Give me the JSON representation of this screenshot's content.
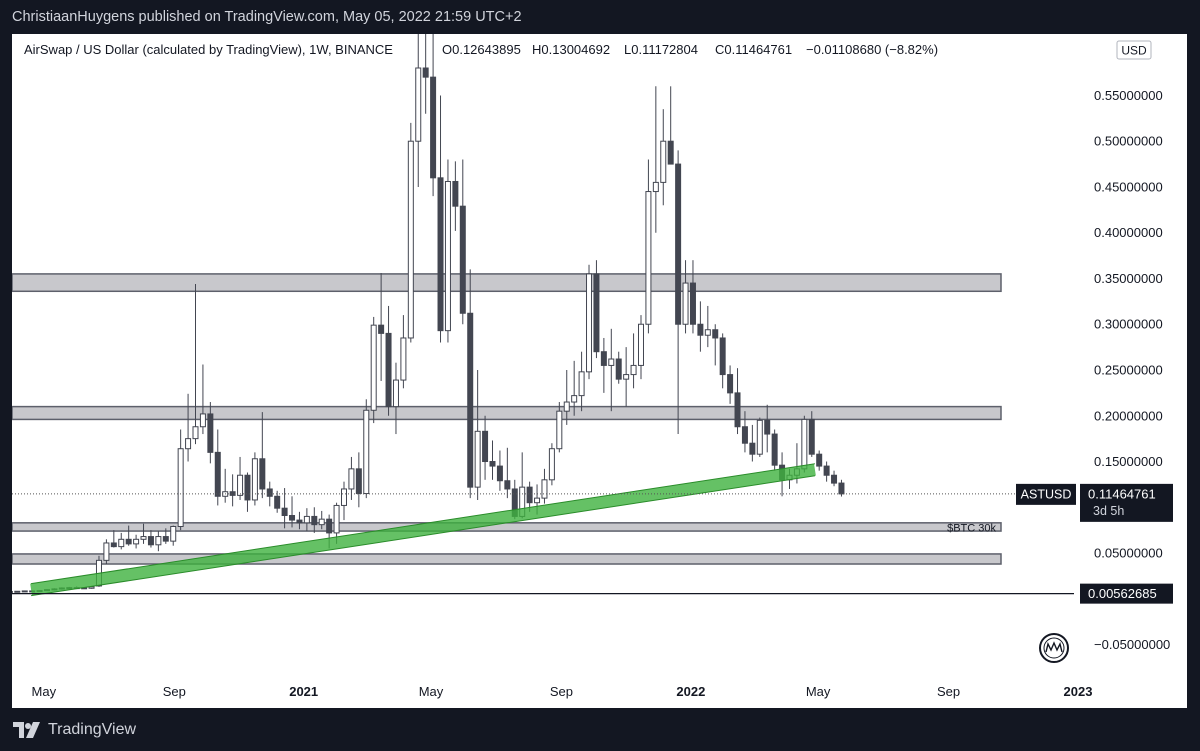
{
  "header": {
    "text": "ChristiaanHuygens published on TradingView.com, May 05, 2022 21:59 UTC+2"
  },
  "footer": {
    "brand": "TradingView"
  },
  "chart_data": {
    "type": "candlestick",
    "title": "AirSwap / US Dollar (calculated by TradingView), 1W, BINANCE",
    "ohlc_legend": {
      "open": "O0.12643895",
      "high": "H0.13004692",
      "low": "L0.11172804",
      "close": "C0.11464761",
      "change": "−0.01108680 (−8.82%)"
    },
    "currency": "USD",
    "symbol": "ASTUSD",
    "last_price": "0.11464761",
    "countdown": "3d 5h",
    "marked_price": "0.00562685",
    "ylim": [
      -0.08,
      0.58
    ],
    "x_ticks": [
      {
        "label": "May",
        "date": "2020-05-01"
      },
      {
        "label": "Sep",
        "date": "2020-09-01"
      },
      {
        "label": "2021",
        "date": "2021-01-01"
      },
      {
        "label": "May",
        "date": "2021-05-01"
      },
      {
        "label": "Sep",
        "date": "2021-09-01"
      },
      {
        "label": "2022",
        "date": "2022-01-01"
      },
      {
        "label": "May",
        "date": "2022-05-01"
      },
      {
        "label": "Sep",
        "date": "2022-09-01"
      },
      {
        "label": "2023",
        "date": "2023-01-01"
      }
    ],
    "y_ticks": [
      "0.55000000",
      "0.50000000",
      "0.45000000",
      "0.40000000",
      "0.35000000",
      "0.30000000",
      "0.25000000",
      "0.20000000",
      "0.15000000",
      "0.10000000",
      "0.05000000",
      "0.00000000",
      "−0.05000000"
    ],
    "zones": [
      {
        "low": 0.336,
        "high": 0.355,
        "label": ""
      },
      {
        "low": 0.196,
        "high": 0.21,
        "label": ""
      },
      {
        "low": 0.074,
        "high": 0.083,
        "label": "$BTC 30k"
      },
      {
        "low": 0.038,
        "high": 0.049,
        "label": ""
      }
    ],
    "trendline": {
      "start": [
        "2020-04-19",
        0.01
      ],
      "end": [
        "2022-04-28",
        0.141
      ]
    },
    "candles": [
      [
        "2020-03-30",
        0.008,
        0.0083,
        0.0077,
        0.008
      ],
      [
        "2020-04-06",
        0.008,
        0.0085,
        0.0076,
        0.0082
      ],
      [
        "2020-04-13",
        0.0082,
        0.009,
        0.0078,
        0.0086
      ],
      [
        "2020-04-20",
        0.0086,
        0.0092,
        0.008,
        0.0084
      ],
      [
        "2020-04-27",
        0.0084,
        0.0095,
        0.008,
        0.009
      ],
      [
        "2020-05-04",
        0.009,
        0.0105,
        0.0085,
        0.01
      ],
      [
        "2020-05-11",
        0.01,
        0.0115,
        0.0092,
        0.0108
      ],
      [
        "2020-05-18",
        0.0108,
        0.0125,
        0.01,
        0.0118
      ],
      [
        "2020-05-25",
        0.0118,
        0.013,
        0.0105,
        0.0122
      ],
      [
        "2020-06-01",
        0.0122,
        0.0135,
        0.011,
        0.012
      ],
      [
        "2020-06-08",
        0.012,
        0.0128,
        0.0108,
        0.0115
      ],
      [
        "2020-06-15",
        0.0115,
        0.014,
        0.011,
        0.013
      ],
      [
        "2020-06-22",
        0.014,
        0.047,
        0.013,
        0.042
      ],
      [
        "2020-06-29",
        0.042,
        0.065,
        0.038,
        0.061
      ],
      [
        "2020-07-06",
        0.061,
        0.075,
        0.056,
        0.057
      ],
      [
        "2020-07-13",
        0.057,
        0.072,
        0.054,
        0.065
      ],
      [
        "2020-07-20",
        0.065,
        0.08,
        0.058,
        0.06
      ],
      [
        "2020-07-27",
        0.06,
        0.07,
        0.055,
        0.065
      ],
      [
        "2020-08-03",
        0.065,
        0.082,
        0.06,
        0.068
      ],
      [
        "2020-08-10",
        0.068,
        0.075,
        0.056,
        0.059
      ],
      [
        "2020-08-17",
        0.059,
        0.074,
        0.052,
        0.068
      ],
      [
        "2020-08-24",
        0.068,
        0.077,
        0.06,
        0.063
      ],
      [
        "2020-08-31",
        0.063,
        0.08,
        0.058,
        0.079
      ],
      [
        "2020-09-07",
        0.079,
        0.185,
        0.075,
        0.164
      ],
      [
        "2020-09-14",
        0.164,
        0.224,
        0.15,
        0.175
      ],
      [
        "2020-09-21",
        0.175,
        0.344,
        0.169,
        0.188
      ],
      [
        "2020-09-28",
        0.188,
        0.256,
        0.18,
        0.202
      ],
      [
        "2020-10-05",
        0.202,
        0.215,
        0.148,
        0.16
      ],
      [
        "2020-10-12",
        0.16,
        0.185,
        0.102,
        0.112
      ],
      [
        "2020-10-19",
        0.112,
        0.142,
        0.105,
        0.117
      ],
      [
        "2020-10-26",
        0.117,
        0.136,
        0.101,
        0.113
      ],
      [
        "2020-11-02",
        0.113,
        0.155,
        0.108,
        0.135
      ],
      [
        "2020-11-09",
        0.135,
        0.138,
        0.095,
        0.108
      ],
      [
        "2020-11-16",
        0.108,
        0.16,
        0.102,
        0.153
      ],
      [
        "2020-11-23",
        0.153,
        0.204,
        0.11,
        0.12
      ],
      [
        "2020-11-30",
        0.12,
        0.128,
        0.101,
        0.112
      ],
      [
        "2020-12-07",
        0.112,
        0.118,
        0.094,
        0.099
      ],
      [
        "2020-12-14",
        0.099,
        0.121,
        0.077,
        0.091
      ],
      [
        "2020-12-21",
        0.091,
        0.112,
        0.078,
        0.086
      ],
      [
        "2020-12-28",
        0.086,
        0.095,
        0.076,
        0.083
      ],
      [
        "2021-01-04",
        0.083,
        0.099,
        0.074,
        0.09
      ],
      [
        "2021-01-11",
        0.09,
        0.1,
        0.072,
        0.081
      ],
      [
        "2021-01-18",
        0.081,
        0.096,
        0.076,
        0.087
      ],
      [
        "2021-01-25",
        0.087,
        0.092,
        0.055,
        0.072
      ],
      [
        "2021-02-01",
        0.072,
        0.105,
        0.06,
        0.102
      ],
      [
        "2021-02-08",
        0.102,
        0.128,
        0.086,
        0.12
      ],
      [
        "2021-02-15",
        0.12,
        0.155,
        0.108,
        0.142
      ],
      [
        "2021-02-22",
        0.142,
        0.16,
        0.1,
        0.115
      ],
      [
        "2021-03-01",
        0.115,
        0.218,
        0.11,
        0.206
      ],
      [
        "2021-03-08",
        0.206,
        0.308,
        0.192,
        0.299
      ],
      [
        "2021-03-15",
        0.299,
        0.356,
        0.238,
        0.29
      ],
      [
        "2021-03-22",
        0.29,
        0.32,
        0.2,
        0.21
      ],
      [
        "2021-03-29",
        0.21,
        0.258,
        0.18,
        0.239
      ],
      [
        "2021-04-05",
        0.239,
        0.31,
        0.23,
        0.285
      ],
      [
        "2021-04-12",
        0.285,
        0.52,
        0.28,
        0.5
      ],
      [
        "2021-04-19",
        0.5,
        0.62,
        0.45,
        0.58
      ],
      [
        "2021-04-26",
        0.58,
        0.65,
        0.53,
        0.57
      ],
      [
        "2021-05-03",
        0.57,
        0.63,
        0.44,
        0.46
      ],
      [
        "2021-05-10",
        0.46,
        0.55,
        0.28,
        0.293
      ],
      [
        "2021-05-17",
        0.293,
        0.48,
        0.28,
        0.456
      ],
      [
        "2021-05-24",
        0.456,
        0.478,
        0.402,
        0.429
      ],
      [
        "2021-05-31",
        0.429,
        0.48,
        0.3,
        0.312
      ],
      [
        "2021-06-07",
        0.312,
        0.36,
        0.11,
        0.122
      ],
      [
        "2021-06-14",
        0.122,
        0.25,
        0.108,
        0.183
      ],
      [
        "2021-06-21",
        0.183,
        0.2,
        0.13,
        0.15
      ],
      [
        "2021-06-28",
        0.15,
        0.173,
        0.13,
        0.145
      ],
      [
        "2021-07-05",
        0.145,
        0.162,
        0.118,
        0.129
      ],
      [
        "2021-07-12",
        0.129,
        0.165,
        0.11,
        0.12
      ],
      [
        "2021-07-19",
        0.12,
        0.13,
        0.087,
        0.09
      ],
      [
        "2021-07-26",
        0.09,
        0.16,
        0.088,
        0.122
      ],
      [
        "2021-08-02",
        0.122,
        0.128,
        0.095,
        0.105
      ],
      [
        "2021-08-09",
        0.105,
        0.125,
        0.092,
        0.11
      ],
      [
        "2021-08-16",
        0.11,
        0.142,
        0.104,
        0.13
      ],
      [
        "2021-08-23",
        0.13,
        0.17,
        0.124,
        0.164
      ],
      [
        "2021-08-30",
        0.164,
        0.215,
        0.16,
        0.205
      ],
      [
        "2021-09-06",
        0.205,
        0.25,
        0.19,
        0.215
      ],
      [
        "2021-09-13",
        0.215,
        0.26,
        0.2,
        0.222
      ],
      [
        "2021-09-20",
        0.222,
        0.27,
        0.205,
        0.248
      ],
      [
        "2021-09-27",
        0.248,
        0.365,
        0.24,
        0.355
      ],
      [
        "2021-10-04",
        0.355,
        0.37,
        0.263,
        0.27
      ],
      [
        "2021-10-11",
        0.27,
        0.285,
        0.225,
        0.255
      ],
      [
        "2021-10-18",
        0.255,
        0.295,
        0.205,
        0.262
      ],
      [
        "2021-10-25",
        0.262,
        0.27,
        0.235,
        0.24
      ],
      [
        "2021-11-01",
        0.24,
        0.275,
        0.21,
        0.245
      ],
      [
        "2021-11-08",
        0.245,
        0.29,
        0.23,
        0.255
      ],
      [
        "2021-11-15",
        0.255,
        0.31,
        0.24,
        0.3
      ],
      [
        "2021-11-22",
        0.3,
        0.48,
        0.29,
        0.445
      ],
      [
        "2021-11-29",
        0.445,
        0.56,
        0.4,
        0.455
      ],
      [
        "2021-12-06",
        0.455,
        0.535,
        0.43,
        0.5
      ],
      [
        "2021-12-13",
        0.5,
        0.56,
        0.48,
        0.475
      ],
      [
        "2021-12-20",
        0.475,
        0.49,
        0.18,
        0.3
      ],
      [
        "2021-12-27",
        0.3,
        0.37,
        0.29,
        0.345
      ],
      [
        "2022-01-03",
        0.345,
        0.37,
        0.29,
        0.3
      ],
      [
        "2022-01-10",
        0.3,
        0.325,
        0.27,
        0.288
      ],
      [
        "2022-01-17",
        0.288,
        0.32,
        0.275,
        0.294
      ],
      [
        "2022-01-24",
        0.294,
        0.3,
        0.255,
        0.285
      ],
      [
        "2022-01-31",
        0.285,
        0.29,
        0.23,
        0.245
      ],
      [
        "2022-02-07",
        0.245,
        0.255,
        0.213,
        0.225
      ],
      [
        "2022-02-14",
        0.225,
        0.252,
        0.18,
        0.188
      ],
      [
        "2022-02-21",
        0.188,
        0.205,
        0.16,
        0.17
      ],
      [
        "2022-02-28",
        0.17,
        0.19,
        0.15,
        0.158
      ],
      [
        "2022-03-07",
        0.158,
        0.198,
        0.155,
        0.195
      ],
      [
        "2022-03-14",
        0.195,
        0.212,
        0.16,
        0.18
      ],
      [
        "2022-03-21",
        0.18,
        0.185,
        0.14,
        0.146
      ],
      [
        "2022-03-28",
        0.146,
        0.16,
        0.112,
        0.13
      ],
      [
        "2022-04-04",
        0.13,
        0.142,
        0.12,
        0.135
      ],
      [
        "2022-04-11",
        0.135,
        0.17,
        0.126,
        0.142
      ],
      [
        "2022-04-18",
        0.142,
        0.2,
        0.138,
        0.196
      ],
      [
        "2022-04-25",
        0.196,
        0.205,
        0.155,
        0.158
      ],
      [
        "2022-05-02",
        0.158,
        0.162,
        0.14,
        0.145
      ],
      [
        "2022-05-09",
        0.145,
        0.15,
        0.128,
        0.135
      ],
      [
        "2022-05-16",
        0.135,
        0.14,
        0.123,
        0.1264
      ],
      [
        "2022-05-23",
        0.12643895,
        0.13004692,
        0.11172804,
        0.11464761
      ]
    ]
  },
  "colors": {
    "background": "#131722",
    "candle": "#434651",
    "zone_fill": "#c8c8cc",
    "zone_border": "#5d606b",
    "trendline": "#3fb23f",
    "text": "#131722"
  },
  "icons": {
    "brand_logo": "tradingview-logo-icon",
    "watermark": "nwg-badge-icon"
  }
}
